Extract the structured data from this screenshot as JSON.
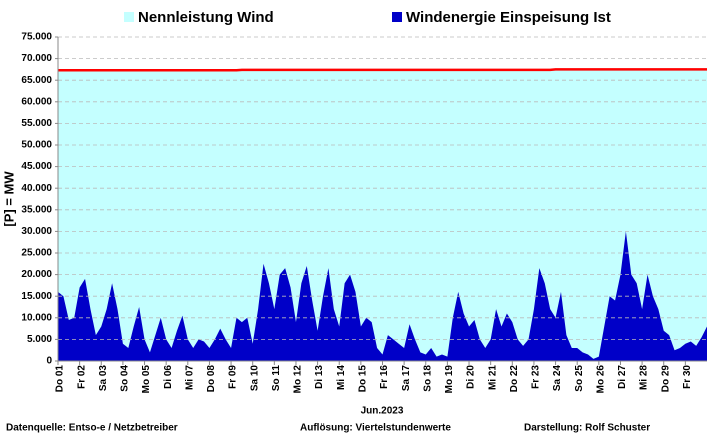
{
  "chart_data": {
    "type": "area",
    "x_label": "Jun.2023",
    "y_label": "[P] = MW",
    "annotations": [
      "Datenquelle:  Entso-e  / Netzbetreiber",
      "Auflösung: Viertelstundenwerte",
      "Darstellung:  Rolf Schuster"
    ],
    "categories": [
      "Do 01",
      null,
      null,
      null,
      "Fr 02",
      null,
      null,
      null,
      "Sa 03",
      null,
      null,
      null,
      "So 04",
      null,
      null,
      null,
      "Mo 05",
      null,
      null,
      null,
      "Di 06",
      null,
      null,
      null,
      "Mi 07",
      null,
      null,
      null,
      "Do 08",
      null,
      null,
      null,
      "Fr 09",
      null,
      null,
      null,
      "Sa 10",
      null,
      null,
      null,
      "So 11",
      null,
      null,
      null,
      "Mo 12",
      null,
      null,
      null,
      "Di 13",
      null,
      null,
      null,
      "Mi 14",
      null,
      null,
      null,
      "Do 15",
      null,
      null,
      null,
      "Fr 16",
      null,
      null,
      null,
      "Sa 17",
      null,
      null,
      null,
      "So 18",
      null,
      null,
      null,
      "Mo 19",
      null,
      null,
      null,
      "Di 20",
      null,
      null,
      null,
      "Mi 21",
      null,
      null,
      null,
      "Do 22",
      null,
      null,
      null,
      "Fr 23",
      null,
      null,
      null,
      "Sa 24",
      null,
      null,
      null,
      "So 25",
      null,
      null,
      null,
      "Mo 26",
      null,
      null,
      null,
      "Di 27",
      null,
      null,
      null,
      "Mi 28",
      null,
      null,
      null,
      "Do 29",
      null,
      null,
      null,
      "Fr 30",
      null,
      null,
      null,
      null
    ],
    "series": [
      {
        "name": "Nennleistung Wind",
        "color": "#c4ffff",
        "line_color": "#ff0000",
        "values": [
          67300,
          67300,
          67300,
          67300,
          67300,
          67300,
          67300,
          67300,
          67300,
          67300,
          67300,
          67300,
          67300,
          67300,
          67300,
          67300,
          67300,
          67300,
          67300,
          67300,
          67300,
          67300,
          67300,
          67300,
          67300,
          67300,
          67300,
          67300,
          67300,
          67300,
          67300,
          67300,
          67300,
          67300,
          67400,
          67400,
          67400,
          67400,
          67400,
          67400,
          67400,
          67400,
          67400,
          67400,
          67400,
          67400,
          67400,
          67400,
          67400,
          67400,
          67400,
          67400,
          67400,
          67400,
          67400,
          67400,
          67400,
          67400,
          67400,
          67400,
          67400,
          67400,
          67400,
          67400,
          67400,
          67400,
          67400,
          67400,
          67400,
          67400,
          67400,
          67400,
          67400,
          67400,
          67400,
          67400,
          67400,
          67400,
          67400,
          67400,
          67400,
          67400,
          67400,
          67400,
          67400,
          67400,
          67400,
          67400,
          67400,
          67400,
          67400,
          67400,
          67500,
          67500,
          67500,
          67500,
          67500,
          67500,
          67500,
          67500,
          67500,
          67500,
          67500,
          67500,
          67500,
          67500,
          67500,
          67500,
          67500,
          67500,
          67500,
          67500,
          67500,
          67500,
          67500,
          67500,
          67500,
          67500,
          67500,
          67500,
          67500
        ]
      },
      {
        "name": "Windenergie Einspeisung Ist",
        "color": "#0000c8",
        "values": [
          16000,
          15000,
          9500,
          10000,
          17000,
          19000,
          12000,
          6000,
          8000,
          12000,
          18000,
          12000,
          4000,
          3000,
          8000,
          12500,
          5000,
          2000,
          6000,
          10000,
          5000,
          3000,
          7000,
          10500,
          5000,
          3000,
          5000,
          4500,
          3000,
          5000,
          7500,
          5000,
          3000,
          10000,
          9000,
          10000,
          4000,
          12000,
          22500,
          18000,
          12000,
          20000,
          21500,
          17000,
          9000,
          18000,
          22000,
          14000,
          7000,
          15000,
          21500,
          12000,
          8000,
          18000,
          20000,
          16000,
          8000,
          10000,
          9000,
          3000,
          1500,
          6000,
          5000,
          4000,
          3000,
          8500,
          5000,
          2000,
          1500,
          3000,
          1000,
          1500,
          1000,
          10000,
          16000,
          11000,
          8000,
          9500,
          5000,
          3000,
          5000,
          12000,
          8000,
          11000,
          9000,
          5000,
          3500,
          5000,
          12000,
          21500,
          18000,
          12000,
          10000,
          16000,
          6000,
          3000,
          3000,
          2000,
          1500,
          500,
          1000,
          8000,
          15000,
          14000,
          20000,
          30000,
          20000,
          18000,
          12000,
          20000,
          15000,
          12000,
          7000,
          6000,
          2500,
          3000,
          4000,
          4500,
          3500,
          5500,
          8000
        ]
      }
    ],
    "ylim": [
      0,
      75000
    ],
    "yticks": [
      0,
      {
        "value": 5000,
        "label": "5.000"
      },
      {
        "value": 10000,
        "label": "10.000"
      },
      {
        "value": 15000,
        "label": "15.000"
      },
      {
        "value": 20000,
        "label": "20.000"
      },
      {
        "value": 25000,
        "label": "25.000"
      },
      {
        "value": 30000,
        "label": "30.000"
      },
      {
        "value": 35000,
        "label": "35.000"
      },
      {
        "value": 40000,
        "label": "40.000"
      },
      {
        "value": 45000,
        "label": "45.000"
      },
      {
        "value": 50000,
        "label": "50.000"
      },
      {
        "value": 55000,
        "label": "55.000"
      },
      {
        "value": 60000,
        "label": "60.000"
      },
      {
        "value": 65000,
        "label": "65.000"
      },
      {
        "value": 70000,
        "label": "70.000"
      },
      {
        "value": 75000,
        "label": "75.000"
      }
    ],
    "grid": true
  }
}
